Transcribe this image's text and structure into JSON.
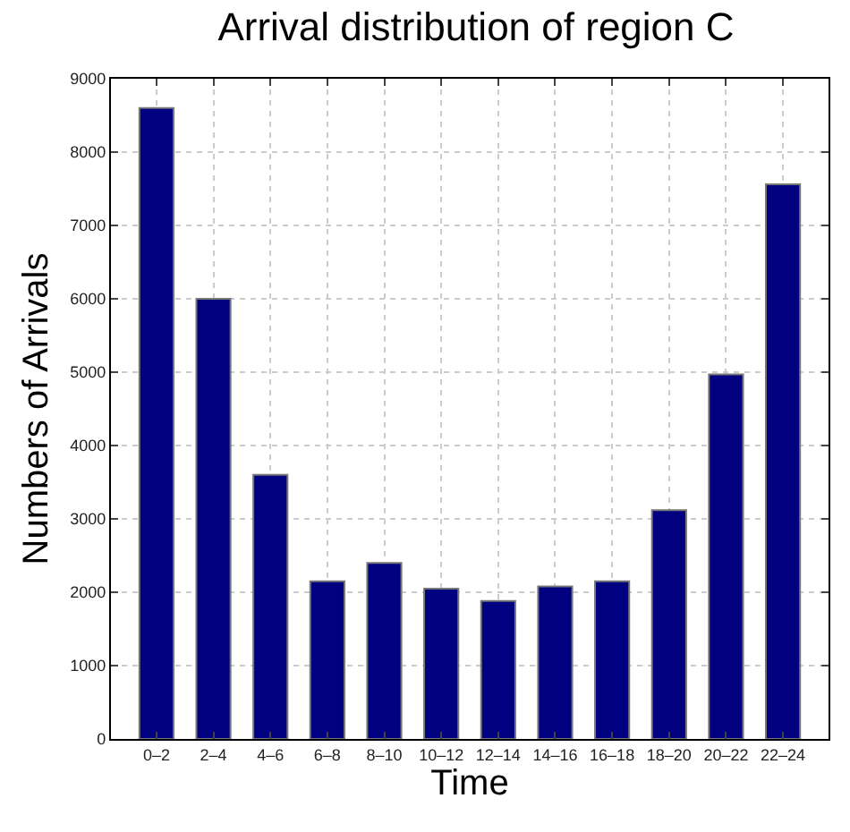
{
  "chart_data": {
    "type": "bar",
    "title": "Arrival distribution of region C",
    "xlabel": "Time",
    "ylabel": "Numbers of Arrivals",
    "categories": [
      "0–2",
      "2–4",
      "4–6",
      "6–8",
      "8–10",
      "10–12",
      "12–14",
      "14–16",
      "16–18",
      "18–20",
      "20–22",
      "22–24"
    ],
    "values": [
      8600,
      6000,
      3600,
      2150,
      2400,
      2050,
      1880,
      2080,
      2150,
      3120,
      4970,
      7560
    ],
    "color": "#000080",
    "ylim": [
      0,
      9000
    ],
    "yticks": [
      0,
      1000,
      2000,
      3000,
      4000,
      5000,
      6000,
      7000,
      8000,
      9000
    ],
    "grid": true
  }
}
